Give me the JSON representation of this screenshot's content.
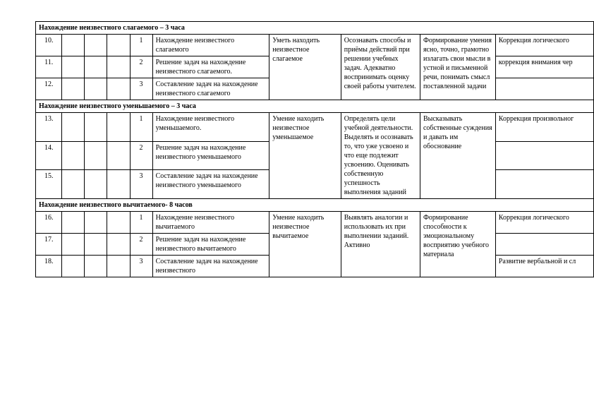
{
  "sections": [
    {
      "title": "Нахождение неизвестного слагаемого – 3 часа",
      "skill": "Уметь находить неизвестное слагаемое",
      "meta": "Осознавать способы и приёмы действий при решении учебных задач. Адекватно воспринимать оценку своей работы учителем.",
      "form": "Формирование умения ясно, точно, грамотно излагать свои мысли в устной и письменной речи, понимать смысл поставленной задачи",
      "rows": [
        {
          "num": "10.",
          "seq": "1",
          "topic": "Нахождение неизвестного слагаемого",
          "corr": "Коррекция логического "
        },
        {
          "num": "11.",
          "seq": "2",
          "topic": "Решение задач на нахождение неизвестного слагаемого.",
          "corr": "коррекция внимания чер"
        },
        {
          "num": "12.",
          "seq": "3",
          "topic": "Составление задач на нахождение неизвестного слагаемого",
          "corr": ""
        }
      ]
    },
    {
      "title": "Нахождение неизвестного уменьшаемого – 3 часа",
      "skill": "Умение находить неизвестное уменьшаемое",
      "meta": "Определять цели учебной деятельности. Выделять и осознавать то, что уже усвоено и что еще подлежит усвоению. Оценивать собственную успешность выполнения заданий",
      "form": "Высказывать собственные суждения и давать им обоснование",
      "rows": [
        {
          "num": "13.",
          "seq": "1",
          "topic": "Нахождение неизвестного уменьшаемого.",
          "corr": "Коррекция произвольног"
        },
        {
          "num": "14.",
          "seq": "2",
          "topic": "Решение задач на нахождение неизвестного уменьшаемого",
          "corr": ""
        },
        {
          "num": "15.",
          "seq": "3",
          "topic": "Составление задач на нахождение неизвестного уменьшаемого",
          "corr": ""
        }
      ]
    },
    {
      "title": "Нахождение неизвестного вычитаемого- 8 часов",
      "skill": "Умение находить неизвестное вычитаемое",
      "meta": "Выявлять аналогии и использовать их при выполнении заданий. Активно",
      "form": "Формирование способности к эмоциональному восприятию учебного материала",
      "rows": [
        {
          "num": "16.",
          "seq": "1",
          "topic": "Нахождение неизвестного вычитаемого",
          "corr": "Коррекция логического "
        },
        {
          "num": "17.",
          "seq": "2",
          "topic": "Решение задач на нахождение неизвестного вычитаемого",
          "corr": ""
        },
        {
          "num": "18.",
          "seq": "3",
          "topic": "Составление задач на нахождение неизвестного",
          "corr": "Развитие вербальной и сл"
        }
      ]
    }
  ]
}
